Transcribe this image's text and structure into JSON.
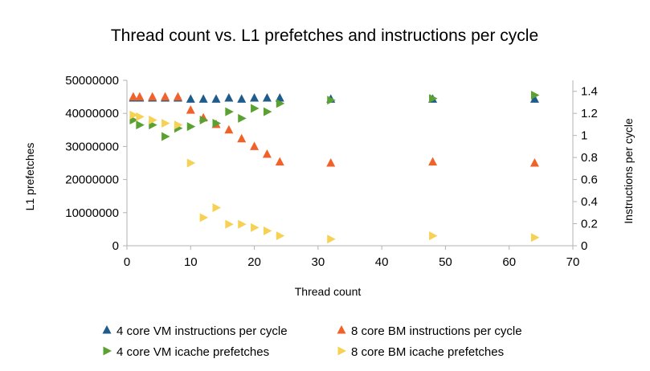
{
  "chart_data": {
    "type": "scatter",
    "title": "Thread count vs. L1 prefetches and instructions per cycle",
    "xlabel": "Thread count",
    "ylabel": "L1 prefetches",
    "y2label": "Instructions per cycle",
    "xlim": [
      0,
      70
    ],
    "ylim": [
      0,
      50000000
    ],
    "y2lim": [
      0,
      1.5
    ],
    "xticks": [
      "0",
      "10",
      "20",
      "30",
      "40",
      "50",
      "60",
      "70"
    ],
    "yticks": [
      "0",
      "10000000",
      "20000000",
      "30000000",
      "40000000",
      "50000000"
    ],
    "y2ticks": [
      "0",
      "0.2",
      "0.4",
      "0.6",
      "0.8",
      "1",
      "1.2",
      "1.4"
    ],
    "grid": false,
    "legend_position": "bottom",
    "series": [
      {
        "name": "4 core VM instructions per cycle",
        "axis": "right",
        "marker": "triangle-up",
        "color": "#1f5c8b",
        "x": [
          1,
          2,
          4,
          6,
          8,
          10,
          12,
          14,
          16,
          18,
          20,
          22,
          24,
          32,
          48,
          64
        ],
        "y": [
          1.34,
          1.34,
          1.34,
          1.34,
          1.34,
          1.33,
          1.33,
          1.33,
          1.34,
          1.33,
          1.34,
          1.34,
          1.34,
          1.33,
          1.33,
          1.33
        ]
      },
      {
        "name": "8 core BM instructions per cycle",
        "axis": "right",
        "marker": "triangle-up",
        "color": "#f0622a",
        "x": [
          1,
          2,
          4,
          6,
          8,
          10,
          12,
          14,
          16,
          18,
          20,
          22,
          24,
          32,
          48,
          64
        ],
        "y": [
          1.35,
          1.35,
          1.35,
          1.35,
          1.35,
          1.23,
          1.16,
          1.1,
          1.05,
          0.97,
          0.9,
          0.83,
          0.76,
          0.75,
          0.76,
          0.75
        ]
      },
      {
        "name": "4 core VM icache prefetches",
        "axis": "left",
        "marker": "triangle-right",
        "color": "#5aa132",
        "x": [
          1,
          2,
          4,
          6,
          8,
          10,
          12,
          14,
          16,
          18,
          20,
          22,
          24,
          32,
          48,
          64
        ],
        "y": [
          38000000,
          36500000,
          36500000,
          33000000,
          35500000,
          36000000,
          38000000,
          37000000,
          40500000,
          38500000,
          41500000,
          40500000,
          43000000,
          44000000,
          44500000,
          45500000
        ]
      },
      {
        "name": "8 core BM icache prefetches",
        "axis": "left",
        "marker": "triangle-right",
        "color": "#f7d154",
        "x": [
          1,
          2,
          4,
          6,
          8,
          10,
          12,
          14,
          16,
          18,
          20,
          22,
          24,
          32,
          48,
          64
        ],
        "y": [
          39500000,
          39000000,
          38000000,
          37000000,
          36500000,
          25000000,
          8500000,
          11500000,
          6500000,
          6500000,
          5500000,
          4500000,
          3000000,
          2000000,
          3000000,
          2500000
        ]
      }
    ]
  }
}
